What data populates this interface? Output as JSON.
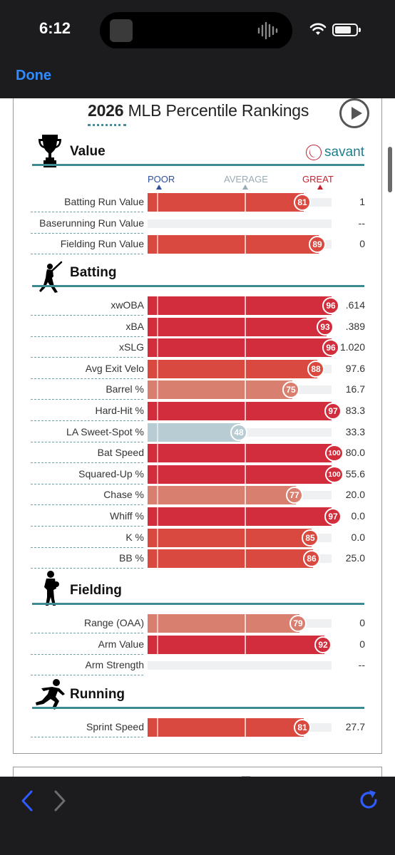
{
  "status": {
    "time": "6:12"
  },
  "nav": {
    "done_label": "Done"
  },
  "card": {
    "year": "2026",
    "title_rest": " MLB Percentile Rankings",
    "savant_label": "savant",
    "scale": {
      "poor": "POOR",
      "average": "AVERAGE",
      "great": "GREAT"
    }
  },
  "colors": {
    "great": "#d22d3c",
    "good": "#d9493f",
    "above": "#d97f70",
    "average": "#b8cdd3",
    "accent": "#3d8a93",
    "link": "#2f8bff"
  },
  "sections": [
    {
      "title": "Value",
      "icon": "trophy-icon",
      "rows": [
        {
          "label": "Batting Run Value",
          "percentile": 81,
          "display": "81",
          "value": "1"
        },
        {
          "label": "Baserunning Run Value",
          "percentile": null,
          "display": "",
          "value": "--"
        },
        {
          "label": "Fielding Run Value",
          "percentile": 89,
          "display": "89",
          "value": "0"
        }
      ]
    },
    {
      "title": "Batting",
      "icon": "batter-icon",
      "rows": [
        {
          "label": "xwOBA",
          "percentile": 96,
          "display": "96",
          "value": ".614"
        },
        {
          "label": "xBA",
          "percentile": 93,
          "display": "93",
          "value": ".389"
        },
        {
          "label": "xSLG",
          "percentile": 96,
          "display": "96",
          "value": "1.020"
        },
        {
          "label": "Avg Exit Velo",
          "percentile": 88,
          "display": "88",
          "value": "97.6"
        },
        {
          "label": "Barrel %",
          "percentile": 75,
          "display": "75",
          "value": "16.7"
        },
        {
          "label": "Hard-Hit %",
          "percentile": 97,
          "display": "97",
          "value": "83.3"
        },
        {
          "label": "LA Sweet-Spot %",
          "percentile": 48,
          "display": "48",
          "value": "33.3"
        },
        {
          "label": "Bat Speed",
          "percentile": 100,
          "display": "100",
          "value": "80.0"
        },
        {
          "label": "Squared-Up %",
          "percentile": 100,
          "display": "100",
          "value": "55.6"
        },
        {
          "label": "Chase %",
          "percentile": 77,
          "display": "77",
          "value": "20.0"
        },
        {
          "label": "Whiff %",
          "percentile": 97,
          "display": "97",
          "value": "0.0"
        },
        {
          "label": "K %",
          "percentile": 85,
          "display": "85",
          "value": "0.0"
        },
        {
          "label": "BB %",
          "percentile": 86,
          "display": "86",
          "value": "25.0"
        }
      ]
    },
    {
      "title": "Fielding",
      "icon": "fielder-icon",
      "rows": [
        {
          "label": "Range (OAA)",
          "percentile": 79,
          "display": "79",
          "value": "0"
        },
        {
          "label": "Arm Value",
          "percentile": 92,
          "display": "92",
          "value": "0"
        },
        {
          "label": "Arm Strength",
          "percentile": null,
          "display": "",
          "value": "--"
        }
      ]
    },
    {
      "title": "Running",
      "icon": "runner-icon",
      "rows": [
        {
          "label": "Sprint Speed",
          "percentile": 81,
          "display": "81",
          "value": "27.7"
        }
      ]
    }
  ]
}
